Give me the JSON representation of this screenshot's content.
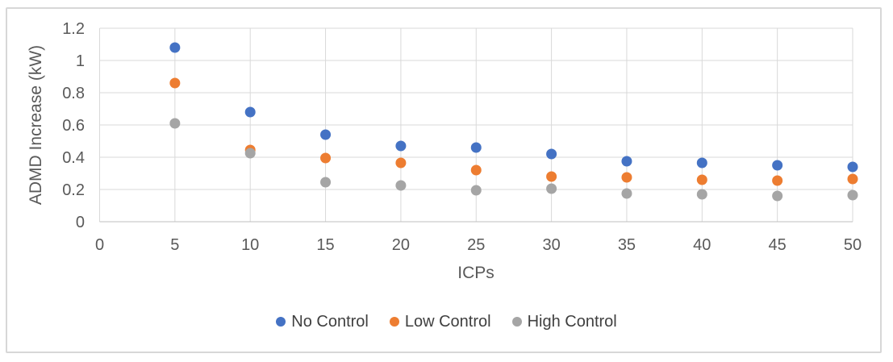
{
  "chart_data": {
    "type": "scatter",
    "x": [
      5,
      10,
      15,
      20,
      25,
      30,
      35,
      40,
      45,
      50
    ],
    "series": [
      {
        "name": "No Control",
        "color": "#4472C4",
        "values": [
          1.08,
          0.68,
          0.54,
          0.47,
          0.46,
          0.42,
          0.375,
          0.365,
          0.35,
          0.34
        ]
      },
      {
        "name": "Low Control",
        "color": "#ED7D31",
        "values": [
          0.86,
          0.445,
          0.395,
          0.365,
          0.32,
          0.28,
          0.275,
          0.26,
          0.255,
          0.265
        ]
      },
      {
        "name": "High Control",
        "color": "#A5A5A5",
        "values": [
          0.61,
          0.425,
          0.245,
          0.225,
          0.195,
          0.205,
          0.175,
          0.17,
          0.16,
          0.165
        ]
      }
    ],
    "title": "",
    "xlabel": "ICPs",
    "ylabel": "ADMD Increase (kW)",
    "xlim": [
      0,
      50
    ],
    "ylim": [
      0,
      1.2
    ],
    "xticks": [
      0,
      5,
      10,
      15,
      20,
      25,
      30,
      35,
      40,
      45,
      50
    ],
    "xtick_labels": [
      "0",
      "5",
      "10",
      "15",
      "20",
      "25",
      "30",
      "35",
      "40",
      "45",
      "50"
    ],
    "yticks": [
      0,
      0.2,
      0.4,
      0.6,
      0.8,
      1.0,
      1.2
    ],
    "ytick_labels": [
      "0",
      "0.2",
      "0.4",
      "0.6",
      "0.8",
      "1",
      "1.2"
    ],
    "grid": true,
    "marker": "circle",
    "legend_position": "bottom"
  },
  "colors": {
    "gridline": "#D9D9D9",
    "axis_line": "#BFBFBF",
    "axis_text": "#595959",
    "legend_text": "#404040",
    "frame_border": "#D7D7D7",
    "background": "#FFFFFF"
  }
}
